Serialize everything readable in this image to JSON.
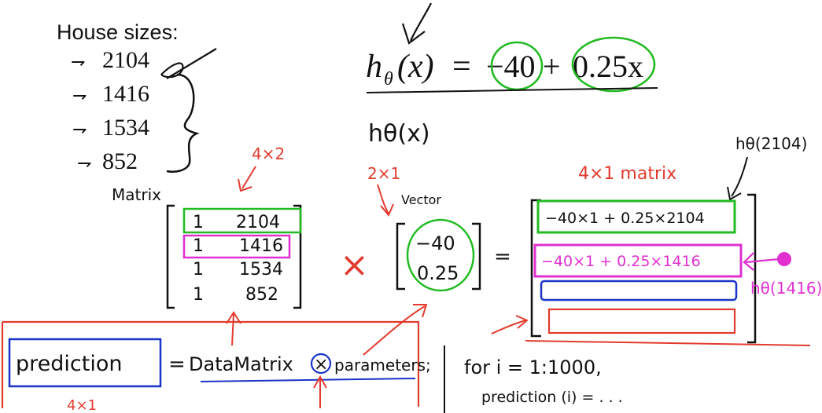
{
  "title": "House sizes:",
  "house_sizes": [
    "2104",
    "1416",
    "1534",
    "852"
  ],
  "hypothesis": {
    "lhs": "h",
    "subscript": "θ",
    "arg": "(x)",
    "equals": "=",
    "intercept": "−40",
    "plus": "+",
    "slope_term": "0.25x"
  },
  "h_theta_note": "hθ(x)",
  "labels": {
    "matrix": "Matrix",
    "matrix_dim": "4×2",
    "vector": "Vector",
    "vector_dim": "2×1",
    "result_dim": "4×1  matrix",
    "h_2104": "hθ(2104)",
    "h_1416": "hθ(1416)",
    "times": "×",
    "equals": "=",
    "prediction_dim": "4×1"
  },
  "data_matrix": [
    [
      "1",
      "2104"
    ],
    [
      "1",
      "1416"
    ],
    [
      "1",
      "1534"
    ],
    [
      "1",
      "852"
    ]
  ],
  "parameter_vector": [
    "−40",
    "0.25"
  ],
  "result_rows": [
    "−40×1 + 0.25×2104",
    "−40×1 + 0.25×1416",
    "",
    ""
  ],
  "code": {
    "lhs": "prediction",
    "equals": "=",
    "data_matrix": "DataMatrix",
    "op": "×",
    "params": "parameters;"
  },
  "loop": {
    "line1": "for  i = 1:1000,",
    "line2": "prediction (i) = . . ."
  },
  "colors": {
    "ink": "#111111",
    "red": "#e23b2e",
    "green": "#22bb22",
    "magenta": "#e030d0",
    "blue": "#1a33c8"
  }
}
